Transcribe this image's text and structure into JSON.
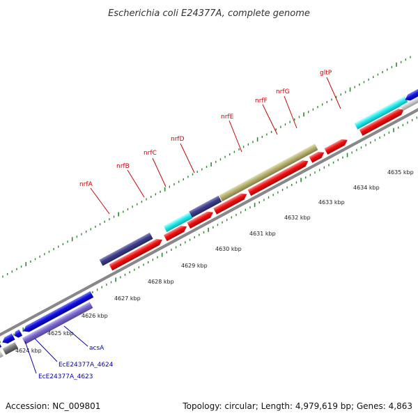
{
  "title": "Escherichia coli E24377A, complete genome",
  "footer": {
    "accession": "Accession: NC_009801",
    "topology": "Topology: circular; Length: 4,979,619 bp; Genes: 4,863"
  },
  "colors": {
    "red_label": "#d40000",
    "blue_label": "#0000bb",
    "backbone": "#888888",
    "tick": "#2a8a2a",
    "gene_red": "#ee1111",
    "gene_blue": "#1111dd",
    "gene_navy": "#3d3d88",
    "gene_cyan": "#22eeee",
    "gene_olive": "#b5b070",
    "gene_lavender": "#7766cc",
    "gene_gray": "#777777",
    "gene_lightgray": "#cccccc"
  },
  "kbp_labels": [
    "4624 kbp",
    "4625 kbp",
    "4626 kbp",
    "4627 kbp",
    "4628 kbp",
    "4629 kbp",
    "4630 kbp",
    "4631 kbp",
    "4632 kbp",
    "4633 kbp",
    "4634 kbp",
    "4635 kbp"
  ],
  "gene_labels_top": [
    "nrfA",
    "nrfB",
    "nrfC",
    "nrfD",
    "nrfE",
    "nrfF",
    "nrfG",
    "gltP"
  ],
  "gene_labels_bottom": [
    "acsA",
    "EcE24377A_4624",
    "EcE24377A_4623"
  ]
}
